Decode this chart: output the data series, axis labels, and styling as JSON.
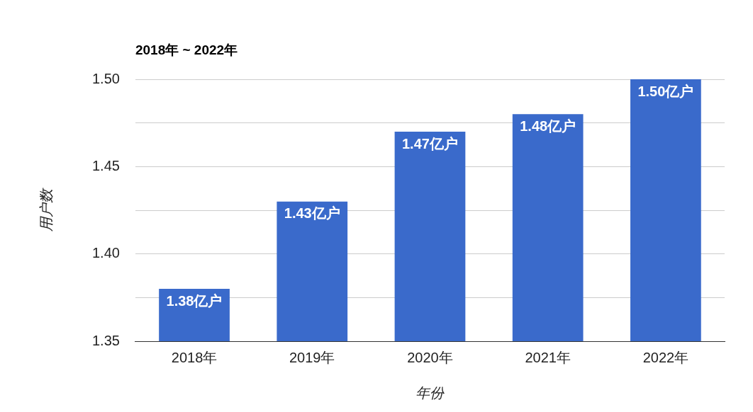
{
  "chart_data": {
    "type": "bar",
    "title": "2018年 ~ 2022年",
    "xlabel": "年份",
    "ylabel": "用户数",
    "categories": [
      "2018年",
      "2019年",
      "2020年",
      "2021年",
      "2022年"
    ],
    "values": [
      1.38,
      1.43,
      1.47,
      1.48,
      1.5
    ],
    "value_labels": [
      "1.38亿户",
      "1.43亿户",
      "1.47亿户",
      "1.48亿户",
      "1.50亿户"
    ],
    "color": "#3a6acb",
    "ylim": [
      1.35,
      1.5
    ],
    "yticks": [
      {
        "value": 1.35,
        "label": "1.35"
      },
      {
        "value": 1.375,
        "label": null
      },
      {
        "value": 1.4,
        "label": "1.40"
      },
      {
        "value": 1.425,
        "label": null
      },
      {
        "value": 1.45,
        "label": "1.45"
      },
      {
        "value": 1.475,
        "label": null
      },
      {
        "value": 1.5,
        "label": "1.50"
      }
    ],
    "grid": "y",
    "legend": false
  }
}
